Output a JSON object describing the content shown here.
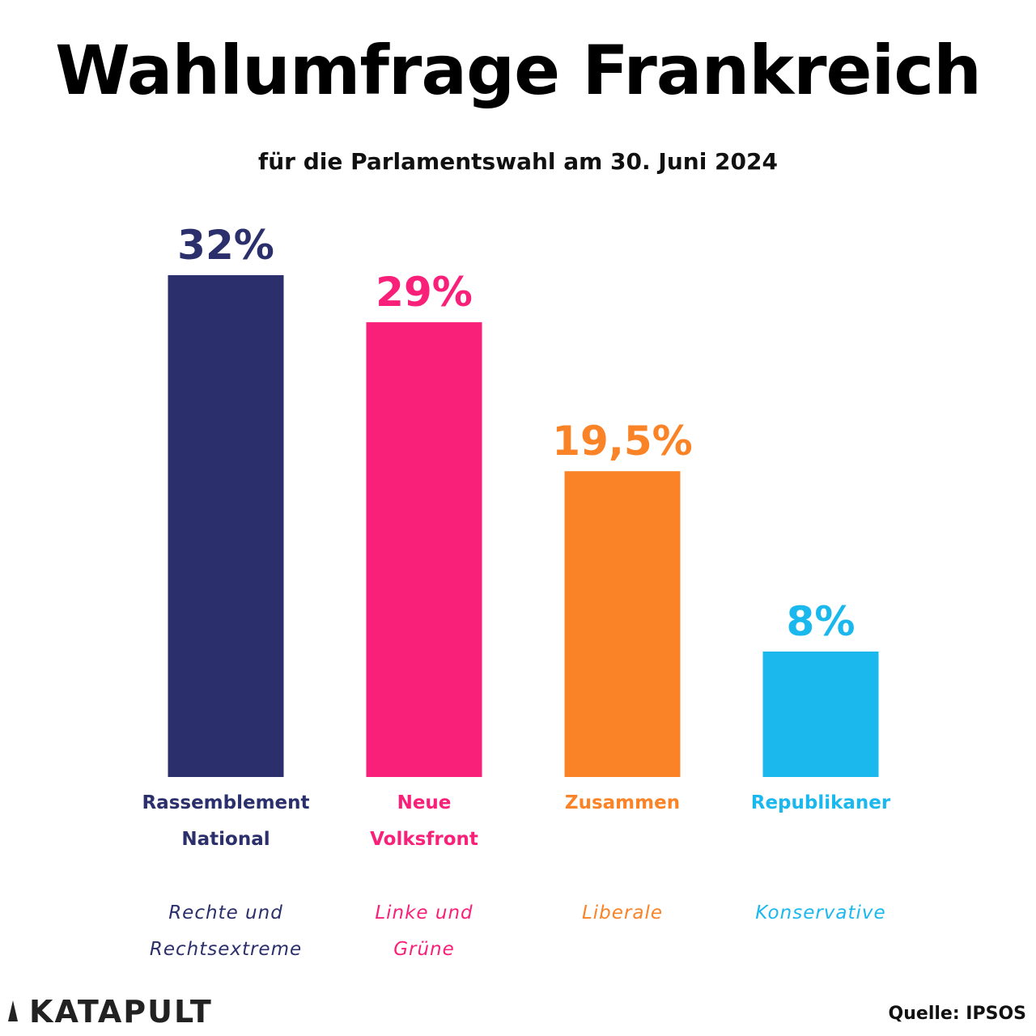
{
  "chart_data": {
    "type": "bar",
    "title": "Wahlumfrage Frankreich",
    "subtitle": "für die Parlamentswahl am 30. Juni 2024",
    "categories": [
      "Rassemblement\nNational",
      "Neue\nVolksfront",
      "Zusammen",
      "Republikaner"
    ],
    "descriptions": [
      "Rechte und\nRechtsextreme",
      "Linke und\nGrüne",
      "Liberale",
      "Konservative"
    ],
    "values": [
      32,
      29,
      19.5,
      8
    ],
    "value_labels": [
      "32%",
      "29%",
      "19,5%",
      "8%"
    ],
    "colors": [
      "#2b2f6b",
      "#f9207a",
      "#fb8327",
      "#1bb8ee"
    ],
    "source": "Quelle: IPSOS",
    "brand": "KATAPULT"
  }
}
